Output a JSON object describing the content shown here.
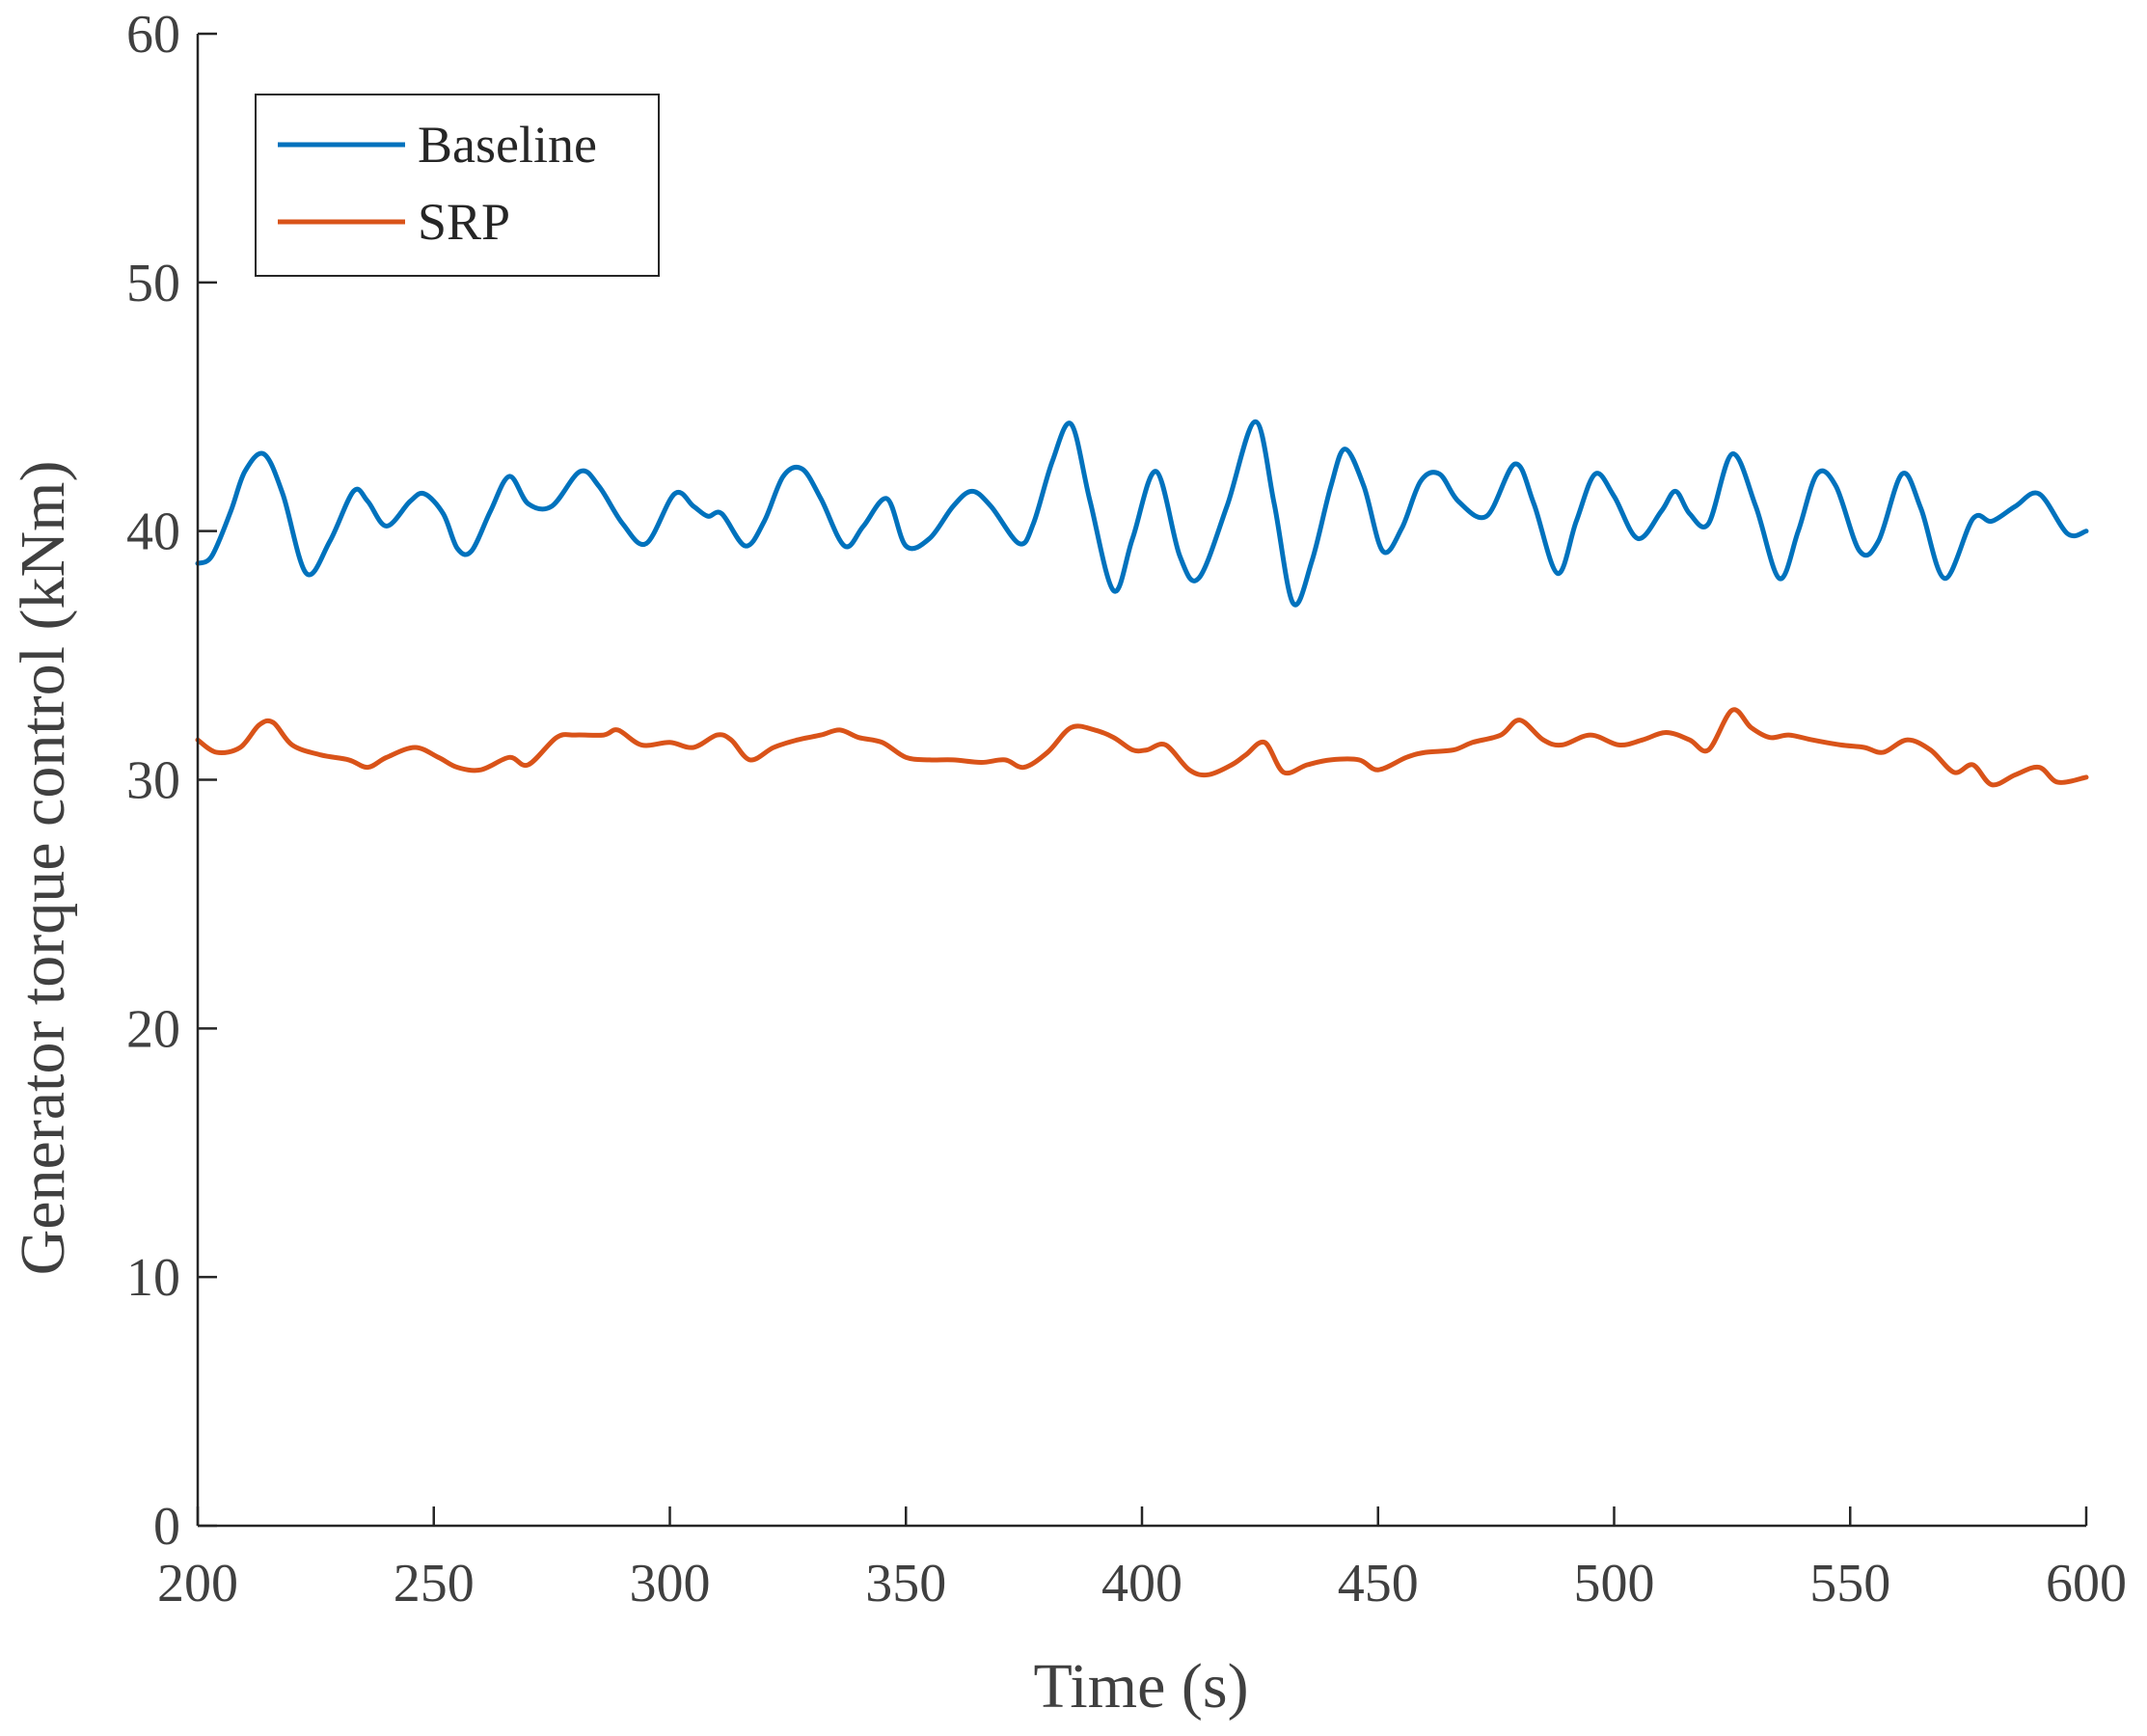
{
  "chart_data": {
    "type": "line",
    "title": "",
    "xlabel": "Time (s)",
    "ylabel": "Generator torque control (kNm)",
    "xlim": [
      200,
      600
    ],
    "ylim": [
      0,
      60
    ],
    "xticks": [
      200,
      250,
      300,
      350,
      400,
      450,
      500,
      550,
      600
    ],
    "yticks": [
      0,
      10,
      20,
      30,
      40,
      50,
      60
    ],
    "grid": false,
    "legend_position": "top-left",
    "series": [
      {
        "name": "Baseline",
        "color": "#0072BD",
        "x": [
          200,
          203,
          207,
          210,
          214,
          218,
          223,
          228,
          233,
          236,
          240,
          245,
          248,
          252,
          255,
          258,
          262,
          266,
          270,
          275,
          281,
          285,
          290,
          295,
          301,
          305,
          308,
          311,
          316,
          320,
          324,
          328,
          332,
          337,
          341,
          346,
          350,
          355,
          360,
          364,
          368,
          374,
          377,
          381,
          385,
          389,
          394,
          398,
          403,
          408,
          412,
          418,
          424,
          428,
          432,
          436,
          440,
          443,
          447,
          451,
          455,
          459,
          463,
          467,
          473,
          479,
          483,
          488,
          492,
          496,
          500,
          505,
          510,
          513,
          516,
          520,
          525,
          530,
          535,
          539,
          543,
          547,
          552,
          556,
          561,
          565,
          570,
          576,
          580,
          585,
          590,
          596,
          600
        ],
        "y": [
          38.7,
          39.0,
          40.8,
          42.4,
          43.1,
          41.5,
          38.3,
          39.6,
          41.6,
          41.2,
          40.2,
          41.2,
          41.5,
          40.7,
          39.3,
          39.2,
          40.8,
          42.2,
          41.1,
          41.0,
          42.4,
          41.8,
          40.3,
          39.5,
          41.5,
          41.0,
          40.6,
          40.7,
          39.4,
          40.4,
          42.2,
          42.5,
          41.3,
          39.4,
          40.2,
          41.3,
          39.4,
          39.7,
          41.0,
          41.6,
          41.0,
          39.5,
          40.3,
          42.8,
          44.3,
          41.2,
          37.6,
          39.7,
          42.4,
          39.0,
          38.1,
          41.0,
          44.4,
          41.1,
          37.1,
          38.8,
          41.8,
          43.3,
          41.8,
          39.2,
          40.1,
          42.0,
          42.3,
          41.2,
          40.6,
          42.7,
          41.1,
          38.3,
          40.4,
          42.3,
          41.4,
          39.7,
          40.8,
          41.6,
          40.7,
          40.3,
          43.1,
          41.0,
          38.1,
          40.0,
          42.3,
          41.8,
          39.2,
          39.6,
          42.3,
          40.9,
          38.1,
          40.5,
          40.4,
          41.0,
          41.5,
          39.9,
          40.0
        ]
      },
      {
        "name": "SRP",
        "color": "#D95319",
        "x": [
          200,
          204,
          209,
          213,
          216,
          220,
          226,
          232,
          236,
          240,
          246,
          251,
          255,
          260,
          266,
          270,
          276,
          280,
          286,
          289,
          294,
          300,
          305,
          310,
          313,
          317,
          322,
          327,
          332,
          336,
          340,
          345,
          350,
          355,
          360,
          366,
          371,
          375,
          380,
          385,
          390,
          394,
          398,
          401,
          405,
          410,
          414,
          419,
          422,
          426,
          430,
          435,
          440,
          446,
          450,
          456,
          460,
          466,
          470,
          476,
          480,
          485,
          489,
          495,
          501,
          506,
          511,
          516,
          520,
          525,
          529,
          533,
          537,
          542,
          548,
          553,
          557,
          562,
          567,
          572,
          576,
          580,
          585,
          590,
          594,
          600
        ],
        "y": [
          31.6,
          31.1,
          31.3,
          32.2,
          32.3,
          31.4,
          31.0,
          30.8,
          30.5,
          30.9,
          31.3,
          30.9,
          30.5,
          30.4,
          30.9,
          30.6,
          31.7,
          31.8,
          31.8,
          32.0,
          31.4,
          31.5,
          31.3,
          31.8,
          31.6,
          30.8,
          31.3,
          31.6,
          31.8,
          32.0,
          31.7,
          31.5,
          30.9,
          30.8,
          30.8,
          30.7,
          30.8,
          30.5,
          31.1,
          32.1,
          32.0,
          31.7,
          31.2,
          31.2,
          31.4,
          30.4,
          30.2,
          30.6,
          31.0,
          31.5,
          30.3,
          30.6,
          30.8,
          30.8,
          30.4,
          30.9,
          31.1,
          31.2,
          31.5,
          31.8,
          32.4,
          31.6,
          31.4,
          31.8,
          31.4,
          31.6,
          31.9,
          31.6,
          31.2,
          32.8,
          32.1,
          31.7,
          31.8,
          31.6,
          31.4,
          31.3,
          31.1,
          31.6,
          31.2,
          30.3,
          30.6,
          29.8,
          30.2,
          30.5,
          29.9,
          30.1
        ]
      }
    ]
  }
}
